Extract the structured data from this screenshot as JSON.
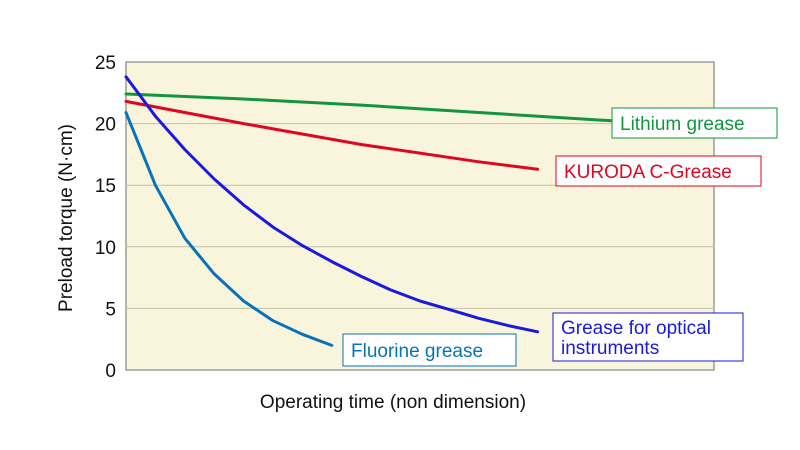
{
  "chart_data": {
    "type": "line",
    "title": "",
    "xlabel": "Operating time (non dimension)",
    "ylabel": "Preload torque (N·cm)",
    "ylim": [
      0,
      25
    ],
    "xlim": [
      0,
      100
    ],
    "yticks": [
      0,
      5,
      10,
      15,
      20,
      25
    ],
    "grid": "horizontal",
    "legend": "inline labels beside line ends",
    "plot_background": "#f8f5dc",
    "series": [
      {
        "name": "Lithium grease",
        "color": "#12953f",
        "x": [
          0,
          20,
          40,
          60,
          80,
          100
        ],
        "y": [
          22.4,
          22.0,
          21.5,
          20.9,
          20.3,
          19.8
        ]
      },
      {
        "name": "KURODA C-Grease",
        "color": "#e0061f",
        "x": [
          0,
          20,
          40,
          60,
          70
        ],
        "y": [
          21.8,
          20.0,
          18.3,
          16.9,
          16.3
        ]
      },
      {
        "name_lines": [
          "Grease for optical",
          "instruments"
        ],
        "color": "#1a1adc",
        "x": [
          0,
          5,
          10,
          15,
          20,
          25,
          30,
          35,
          40,
          45,
          50,
          55,
          60,
          65,
          70
        ],
        "y": [
          23.8,
          20.6,
          17.9,
          15.5,
          13.4,
          11.6,
          10.1,
          8.8,
          7.6,
          6.5,
          5.6,
          4.9,
          4.2,
          3.6,
          3.1
        ]
      },
      {
        "name": "Fluorine grease",
        "color": "#0a73b8",
        "x": [
          0,
          5,
          10,
          15,
          20,
          25,
          30,
          35
        ],
        "y": [
          20.9,
          15.0,
          10.7,
          7.8,
          5.6,
          4.0,
          2.9,
          2.0
        ]
      }
    ]
  }
}
